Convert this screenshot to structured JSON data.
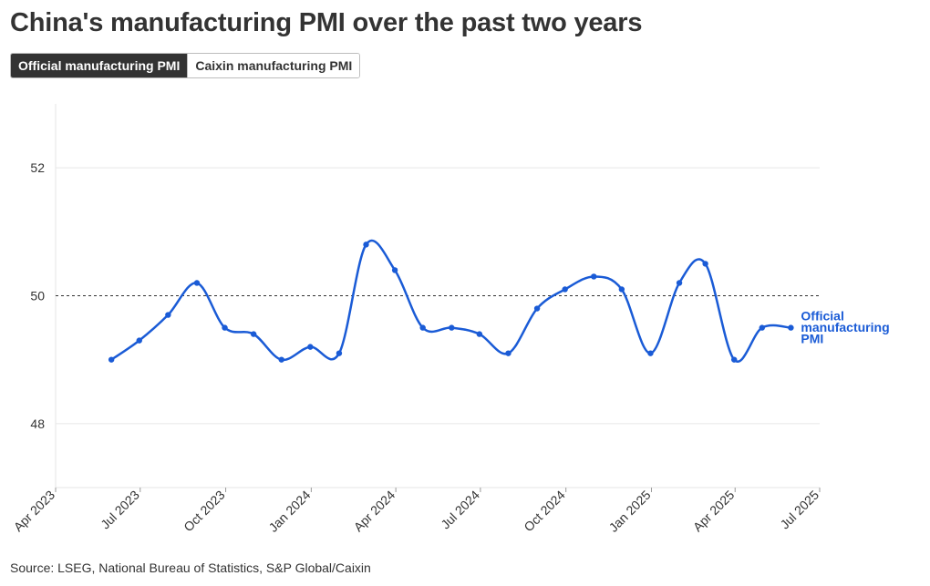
{
  "header": {
    "title": "China's manufacturing PMI over the past two years"
  },
  "tabs": [
    {
      "label": "Official manufacturing PMI",
      "active": true
    },
    {
      "label": "Caixin manufacturing PMI",
      "active": false
    }
  ],
  "footer": {
    "source": "Source: LSEG, National Bureau of Statistics, S&P Global/Caixin"
  },
  "colors": {
    "line": "#1a5bd6",
    "axis_text": "#333333",
    "grid": "#e6e6e6",
    "reference_line": "#333333"
  },
  "chart_data": {
    "type": "line",
    "title": "China's manufacturing PMI over the past two years",
    "xlabel": "",
    "ylabel": "",
    "ylim": [
      47,
      53
    ],
    "xlim": [
      "2023-04-01",
      "2025-07-01"
    ],
    "yticks": [
      48,
      50,
      52
    ],
    "xticks": [
      {
        "date": "2023-04-01",
        "label": "Apr 2023"
      },
      {
        "date": "2023-07-01",
        "label": "Jul 2023"
      },
      {
        "date": "2023-10-01",
        "label": "Oct 2023"
      },
      {
        "date": "2024-01-01",
        "label": "Jan 2024"
      },
      {
        "date": "2024-04-01",
        "label": "Apr 2024"
      },
      {
        "date": "2024-07-01",
        "label": "Jul 2024"
      },
      {
        "date": "2024-10-01",
        "label": "Oct 2024"
      },
      {
        "date": "2025-01-01",
        "label": "Jan 2025"
      },
      {
        "date": "2025-04-01",
        "label": "Apr 2025"
      },
      {
        "date": "2025-07-01",
        "label": "Jul 2025"
      }
    ],
    "reference_line": 50,
    "grid": "horizontal",
    "series": [
      {
        "name": "Official manufacturing PMI",
        "label_lines": [
          "Official",
          "manufacturing",
          "PMI"
        ],
        "x": [
          "2023-05-31",
          "2023-06-30",
          "2023-07-31",
          "2023-08-31",
          "2023-09-30",
          "2023-10-31",
          "2023-11-30",
          "2023-12-31",
          "2024-01-31",
          "2024-02-29",
          "2024-03-31",
          "2024-04-30",
          "2024-05-31",
          "2024-06-30",
          "2024-07-31",
          "2024-08-31",
          "2024-09-30",
          "2024-10-31",
          "2024-11-30",
          "2024-12-31",
          "2025-01-31",
          "2025-02-28",
          "2025-03-31",
          "2025-04-30",
          "2025-05-31"
        ],
        "values": [
          49.0,
          49.3,
          49.7,
          50.2,
          49.5,
          49.4,
          49.0,
          49.2,
          49.1,
          50.8,
          50.4,
          49.5,
          49.5,
          49.4,
          49.1,
          49.8,
          50.1,
          50.3,
          50.1,
          49.1,
          50.2,
          50.5,
          49.0,
          49.5,
          49.5
        ]
      }
    ]
  }
}
